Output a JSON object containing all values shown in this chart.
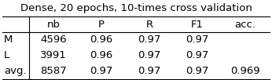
{
  "title": "Dense, 20 epochs, 10-times cross validation",
  "col_headers": [
    "",
    "nb",
    "P",
    "R",
    "F1",
    "acc."
  ],
  "rows": [
    [
      "M",
      "4596",
      "0.96",
      "0.97",
      "0.97",
      ""
    ],
    [
      "L",
      "3991",
      "0.96",
      "0.97",
      "0.97",
      ""
    ],
    [
      "avg.",
      "8587",
      "0.97",
      "0.97",
      "0.97",
      "0.969"
    ]
  ],
  "title_fontsize": 9.5,
  "cell_fontsize": 9.5,
  "bg_color": "#ffffff",
  "text_color": "#000000",
  "line_color": "#000000",
  "line_width": 0.8
}
